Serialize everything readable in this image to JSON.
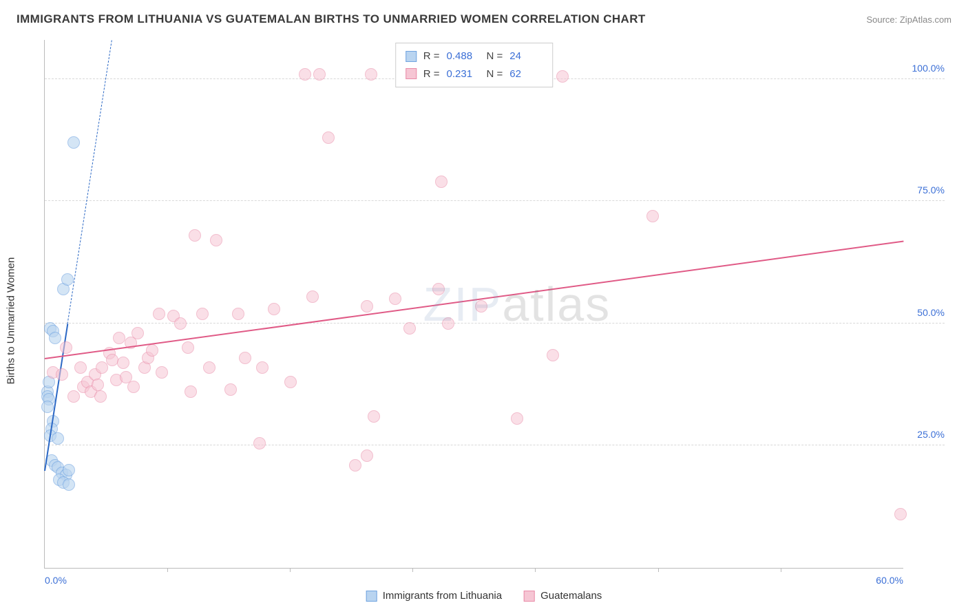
{
  "title": "IMMIGRANTS FROM LITHUANIA VS GUATEMALAN BIRTHS TO UNMARRIED WOMEN CORRELATION CHART",
  "source": "Source: ZipAtlas.com",
  "watermark_a": "ZIP",
  "watermark_b": "atlas",
  "chart": {
    "type": "scatter",
    "ylabel": "Births to Unmarried Women",
    "xlim": [
      0,
      60
    ],
    "ylim": [
      0,
      108
    ],
    "yticks": [
      {
        "v": 25,
        "label": "25.0%"
      },
      {
        "v": 50,
        "label": "50.0%"
      },
      {
        "v": 75,
        "label": "75.0%"
      },
      {
        "v": 100,
        "label": "100.0%"
      }
    ],
    "xticks_minor": [
      8.57,
      17.14,
      25.71,
      34.28,
      42.85,
      51.42
    ],
    "xtick_labels": [
      {
        "v": 0,
        "label": "0.0%",
        "align": "left"
      },
      {
        "v": 60,
        "label": "60.0%",
        "align": "right"
      }
    ],
    "background_color": "#ffffff",
    "grid_color": "#d8d8d8",
    "marker_radius": 9,
    "marker_stroke_width": 1.5,
    "series": [
      {
        "name": "Immigrants from Lithuania",
        "fill": "#b9d4f0",
        "stroke": "#6fa3e0",
        "fill_opacity": 0.6,
        "trend": {
          "x1": 0,
          "y1": 20,
          "x2": 1.6,
          "y2": 50,
          "dash": "none",
          "color": "#2b68c5",
          "width": 2.5,
          "extend_dash_to_y": 108
        },
        "stats": {
          "R": "0.488",
          "N": "24"
        },
        "points": [
          [
            0.2,
            36
          ],
          [
            0.2,
            35
          ],
          [
            0.3,
            38
          ],
          [
            0.3,
            34.5
          ],
          [
            0.2,
            33
          ],
          [
            0.4,
            49
          ],
          [
            0.6,
            48.5
          ],
          [
            0.7,
            47
          ],
          [
            2.0,
            87
          ],
          [
            1.3,
            57
          ],
          [
            1.6,
            59
          ],
          [
            0.6,
            30
          ],
          [
            0.5,
            28.5
          ],
          [
            0.4,
            27
          ],
          [
            0.9,
            26.5
          ],
          [
            0.5,
            22
          ],
          [
            0.7,
            21
          ],
          [
            0.9,
            20.5
          ],
          [
            1.2,
            19.5
          ],
          [
            1.5,
            19
          ],
          [
            1.7,
            20
          ],
          [
            1.0,
            18
          ],
          [
            1.3,
            17.5
          ],
          [
            1.7,
            17
          ]
        ]
      },
      {
        "name": "Guatemalans",
        "fill": "#f6c6d4",
        "stroke": "#e98aa7",
        "fill_opacity": 0.55,
        "trend": {
          "x1": 0,
          "y1": 43,
          "x2": 60,
          "y2": 67,
          "dash": "none",
          "color": "#e05a86",
          "width": 2.5
        },
        "stats": {
          "R": "0.231",
          "N": "62"
        },
        "points": [
          [
            0.6,
            40
          ],
          [
            1.2,
            39.5
          ],
          [
            1.5,
            45
          ],
          [
            2.0,
            35
          ],
          [
            2.5,
            41
          ],
          [
            2.7,
            37
          ],
          [
            3.0,
            38
          ],
          [
            3.2,
            36
          ],
          [
            3.5,
            39.5
          ],
          [
            3.7,
            37.5
          ],
          [
            3.9,
            35
          ],
          [
            4.0,
            41
          ],
          [
            4.5,
            44
          ],
          [
            4.7,
            42.5
          ],
          [
            5.0,
            38.5
          ],
          [
            5.2,
            47
          ],
          [
            5.5,
            42
          ],
          [
            5.7,
            39
          ],
          [
            6.0,
            46
          ],
          [
            6.2,
            37
          ],
          [
            6.5,
            48
          ],
          [
            7.0,
            41
          ],
          [
            7.2,
            43
          ],
          [
            7.5,
            44.5
          ],
          [
            8.0,
            52
          ],
          [
            8.2,
            40
          ],
          [
            9.0,
            51.5
          ],
          [
            9.5,
            50
          ],
          [
            10.0,
            45
          ],
          [
            10.2,
            36
          ],
          [
            10.5,
            68
          ],
          [
            11.0,
            52
          ],
          [
            11.5,
            41
          ],
          [
            12.0,
            67
          ],
          [
            13.0,
            36.5
          ],
          [
            13.5,
            52
          ],
          [
            14.0,
            43
          ],
          [
            15.0,
            25.5
          ],
          [
            15.2,
            41
          ],
          [
            16.0,
            53
          ],
          [
            17.2,
            38
          ],
          [
            18.2,
            101
          ],
          [
            18.7,
            55.5
          ],
          [
            19.2,
            101
          ],
          [
            19.8,
            88
          ],
          [
            21.7,
            21
          ],
          [
            22.5,
            53.5
          ],
          [
            22.5,
            23
          ],
          [
            22.8,
            101
          ],
          [
            23.0,
            31
          ],
          [
            24.5,
            55
          ],
          [
            25.5,
            49
          ],
          [
            27.5,
            57
          ],
          [
            27.7,
            79
          ],
          [
            28.2,
            50
          ],
          [
            29.5,
            100.5
          ],
          [
            30.5,
            53.5
          ],
          [
            33.0,
            30.5
          ],
          [
            35.5,
            43.5
          ],
          [
            36.2,
            100.5
          ],
          [
            42.5,
            72
          ],
          [
            59.8,
            11
          ]
        ]
      }
    ]
  },
  "legend_top": {
    "rows": [
      {
        "swatch_fill": "#b9d4f0",
        "swatch_stroke": "#6fa3e0",
        "R_label": "R =",
        "R": "0.488",
        "N_label": "N =",
        "N": "24"
      },
      {
        "swatch_fill": "#f6c6d4",
        "swatch_stroke": "#e98aa7",
        "R_label": "R =",
        "R": "0.231",
        "N_label": "N =",
        "N": "62"
      }
    ]
  },
  "legend_bottom": [
    {
      "swatch_fill": "#b9d4f0",
      "swatch_stroke": "#6fa3e0",
      "label": "Immigrants from Lithuania"
    },
    {
      "swatch_fill": "#f6c6d4",
      "swatch_stroke": "#e98aa7",
      "label": "Guatemalans"
    }
  ]
}
